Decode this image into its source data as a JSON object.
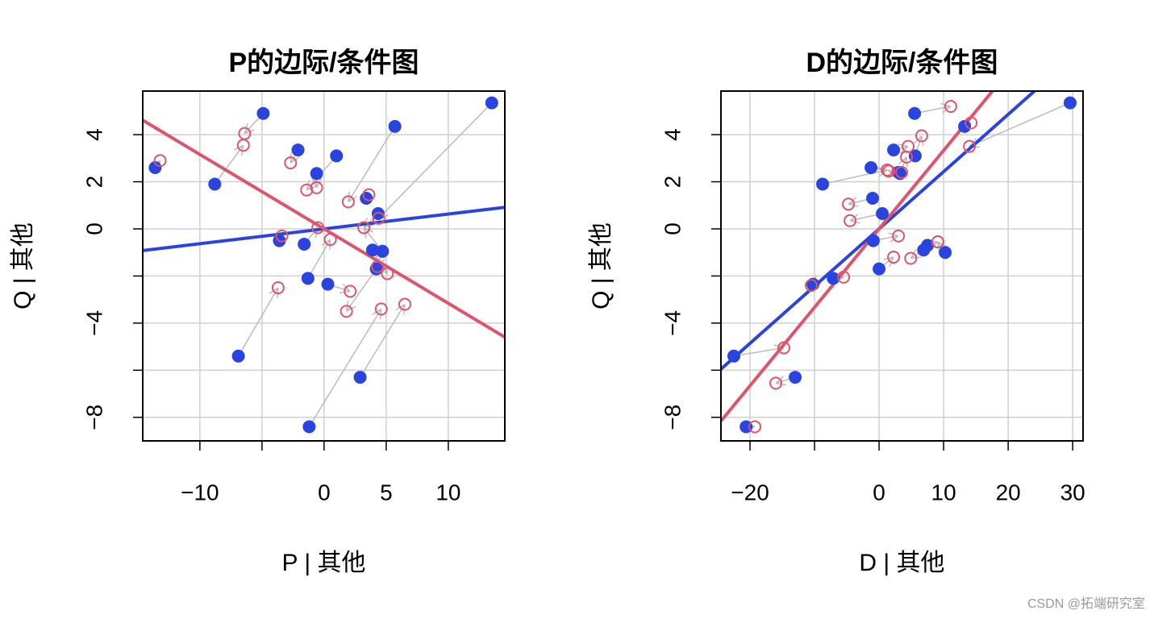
{
  "chart_data": [
    {
      "type": "scatter",
      "title": "P的边际/条件图",
      "xlabel": "P | 其他",
      "ylabel": "Q | 其他",
      "xlim": [
        -14.6,
        14.55
      ],
      "ylim": [
        -9.0,
        5.85
      ],
      "xticks": [
        {
          "value": -10,
          "label": "−10"
        },
        0,
        5,
        10
      ],
      "yticks": [
        {
          "value": -8,
          "label": "−8"
        },
        {
          "value": -4,
          "label": "−4"
        },
        0,
        2,
        4
      ],
      "grid_x": [
        -10,
        -5,
        0,
        5,
        10
      ],
      "grid_y": [
        -8,
        -6,
        -4,
        -2,
        0,
        2,
        4
      ],
      "arrow_color": "#bbbbbb",
      "series": [
        {
          "color": "#2a44e0",
          "filled": true,
          "x": [
            -13.6,
            -4.9,
            -8.8,
            -2.1,
            -0.6,
            1.0,
            5.7,
            13.5,
            -6.9,
            -3.6,
            -1.6,
            -1.3,
            0.3,
            3.4,
            4.35,
            3.9,
            4.7,
            4.2,
            2.9,
            -1.2,
            4.7
          ],
          "values": [
            2.6,
            4.9,
            1.9,
            3.35,
            2.35,
            3.1,
            4.35,
            5.35,
            -5.4,
            -0.5,
            -0.65,
            -2.1,
            -2.35,
            1.3,
            0.65,
            -0.9,
            -0.95,
            -1.7,
            -6.3,
            -8.4,
            -0.95
          ]
        },
        {
          "color": "#df536b",
          "filled": false,
          "x": [
            -13.2,
            -6.4,
            -6.5,
            -2.7,
            -0.6,
            -1.4,
            1.95,
            4.4,
            -3.7,
            -3.4,
            -0.5,
            0.5,
            2.1,
            3.6,
            3.2,
            5.1,
            4.3,
            1.8,
            6.5,
            4.6,
            3.2
          ],
          "values": [
            2.9,
            4.05,
            3.55,
            2.8,
            1.75,
            1.65,
            1.15,
            0.45,
            -2.5,
            -0.3,
            0.05,
            -0.45,
            -2.65,
            1.45,
            0.05,
            -1.9,
            -1.6,
            -3.5,
            -3.2,
            -3.4,
            0.05
          ]
        }
      ],
      "lines": [
        {
          "color": "#2a44e0",
          "slope": 0.063,
          "intercept": 0
        },
        {
          "color": "#df536b",
          "slope": -0.316,
          "intercept": 0
        }
      ]
    },
    {
      "type": "scatter",
      "title": "D的边际/条件图",
      "xlabel": "D | 其他",
      "ylabel": "Q | 其他",
      "xlim": [
        -24.5,
        31.6
      ],
      "ylim": [
        -9.0,
        5.85
      ],
      "xticks": [
        {
          "value": -20,
          "label": "−20"
        },
        0,
        10,
        20,
        30
      ],
      "yticks": [
        {
          "value": -8,
          "label": "−8"
        },
        {
          "value": -4,
          "label": "−4"
        },
        0,
        2,
        4
      ],
      "grid_x": [
        -20,
        -10,
        0,
        10,
        20,
        30
      ],
      "grid_y": [
        -8,
        -6,
        -4,
        -2,
        0,
        2,
        4
      ],
      "arrow_color": "#bbbbbb",
      "series": [
        {
          "color": "#2a44e0",
          "filled": true,
          "x": [
            -22.5,
            -20.6,
            -13,
            -8.75,
            -7.1,
            -10.25,
            -1.25,
            -1,
            0.5,
            -0.9,
            0,
            2.25,
            3.25,
            5.5,
            5.6,
            13.25,
            29.6,
            7.5,
            6.9,
            10.25,
            3.0
          ],
          "values": [
            -5.4,
            -8.4,
            -6.3,
            1.9,
            -2.1,
            -2.35,
            2.6,
            1.3,
            0.65,
            -0.5,
            -1.7,
            3.35,
            2.35,
            4.9,
            3.1,
            4.35,
            5.35,
            -0.7,
            -0.9,
            -1.0,
            2.4
          ]
        },
        {
          "color": "#df536b",
          "filled": false,
          "x": [
            -14.75,
            -19.25,
            -16,
            1.25,
            -5.5,
            -10.5,
            3.5,
            -4.75,
            -4.5,
            3,
            2.25,
            4.5,
            4.25,
            11.1,
            6.6,
            14.25,
            14,
            9.1,
            4.9,
            9.1,
            1.5
          ],
          "values": [
            -5.05,
            -8.4,
            -6.55,
            2.5,
            -2.05,
            -2.4,
            2.4,
            1.05,
            0.35,
            -0.3,
            -1.2,
            3.5,
            3.05,
            5.2,
            3.95,
            4.5,
            3.5,
            -0.55,
            -1.25,
            -0.55,
            2.45
          ]
        }
      ],
      "lines": [
        {
          "color": "#2a44e0",
          "slope": 0.243,
          "intercept": 0
        },
        {
          "color": "#df536b",
          "slope": 0.333,
          "intercept": 0
        }
      ]
    }
  ],
  "watermark": "CSDN @拓端研究室"
}
